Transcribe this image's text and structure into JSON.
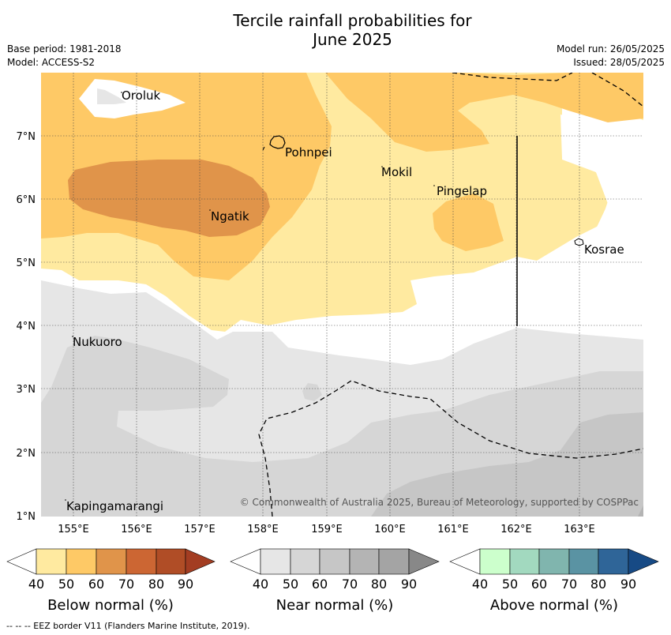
{
  "header": {
    "title_line1": "Tercile rainfall probabilities for",
    "title_line2": "June 2025",
    "base_period": "Base period: 1981-2018",
    "model": "Model: ACCESS-S2",
    "model_run": "Model run: 26/05/2025",
    "issued": "Issued: 28/05/2025"
  },
  "map": {
    "places": [
      "Oroluk",
      "Pohnpei",
      "Mokil",
      "Pingelap",
      "Ngatik",
      "Kosrae",
      "Nukuoro",
      "Kapingamarangi"
    ],
    "lat_labels": [
      "7°N",
      "6°N",
      "5°N",
      "4°N",
      "3°N",
      "2°N",
      "1°N"
    ],
    "lon_labels": [
      "155°E",
      "156°E",
      "157°E",
      "158°E",
      "159°E",
      "160°E",
      "161°E",
      "162°E",
      "163°E"
    ],
    "copyright": "© Commonwealth of Australia 2025, Bureau of Meteorology, supported by COSPPac"
  },
  "legends": [
    {
      "title": "Below normal (%)",
      "ticks": [
        "40",
        "50",
        "60",
        "70",
        "80",
        "90"
      ],
      "colors": [
        "#ffeaa0",
        "#fec966",
        "#e0944a",
        "#cc6633",
        "#b04d26",
        "#a33d22"
      ]
    },
    {
      "title": "Near normal (%)",
      "ticks": [
        "40",
        "50",
        "60",
        "70",
        "80",
        "90"
      ],
      "colors": [
        "#e6e6e6",
        "#d6d6d6",
        "#c6c6c6",
        "#b4b4b4",
        "#a4a4a4",
        "#888888"
      ]
    },
    {
      "title": "Above normal (%)",
      "ticks": [
        "40",
        "50",
        "60",
        "70",
        "80",
        "90"
      ],
      "colors": [
        "#ccffcc",
        "#a2d9bf",
        "#80b5ae",
        "#5a93a3",
        "#2f6598",
        "#174a85"
      ]
    }
  ],
  "footnote": "--  --  -- EEZ border V11 (Flanders Marine Institute, 2019)."
}
